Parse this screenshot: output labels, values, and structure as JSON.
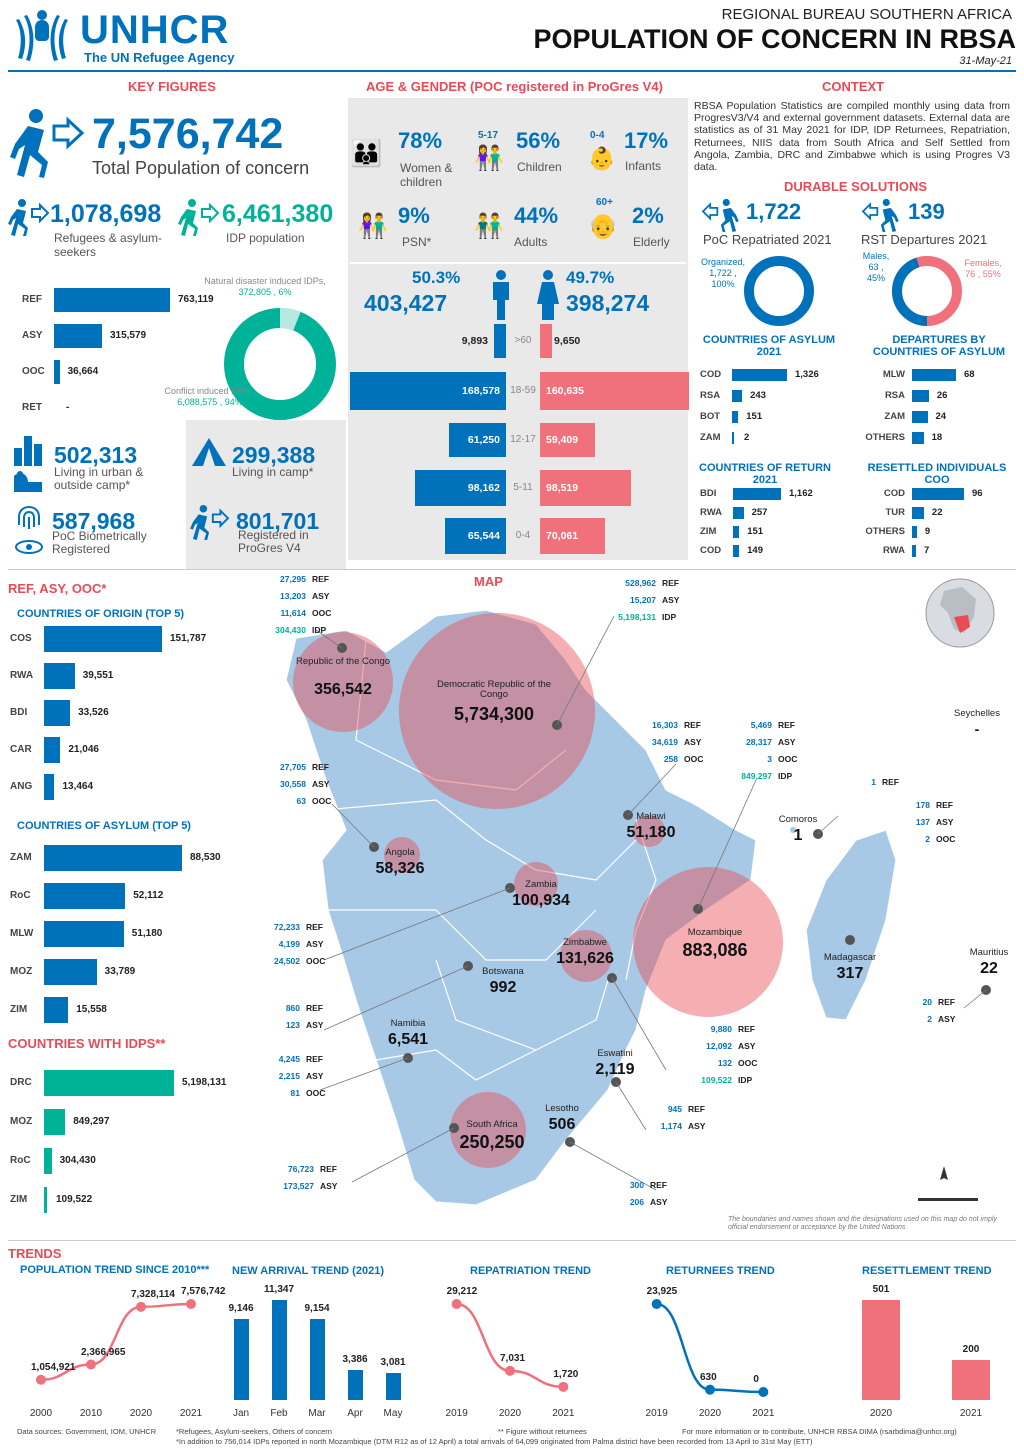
{
  "header": {
    "org": "UNHCR",
    "tagline": "The UN Refugee Agency",
    "bureau": "REGIONAL BUREAU SOUTHERN AFRICA",
    "title": "POPULATION OF CONCERN IN RBSA",
    "date": "31-May-21"
  },
  "key_figures": {
    "heading": "KEY FIGURES",
    "total_value": "7,576,742",
    "total_label": "Total Population of concern",
    "refugees_value": "1,078,698",
    "refugees_label": "Refugees & asylum-seekers",
    "idp_value": "6,461,380",
    "idp_label": "IDP population",
    "bars": [
      {
        "label": "REF",
        "value": "763,119",
        "n": 763119
      },
      {
        "label": "ASY",
        "value": "315,579",
        "n": 315579
      },
      {
        "label": "OOC",
        "value": "36,664",
        "n": 36664
      },
      {
        "label": "RET",
        "value": "-",
        "n": 0
      }
    ],
    "donut_natural_label": "Natural disaster induced IDPs,",
    "donut_natural_value": "372,805 , 6%",
    "donut_conflict_label": "Conflict induced IDPs ,",
    "donut_conflict_value": "6,088,575 , 94%",
    "urban_value": "502,313",
    "urban_label": "Living in urban & outside camp*",
    "camp_value": "299,388",
    "camp_label": "Living in camp*",
    "bio_value": "587,968",
    "bio_label": "PoC Biometrically Registered",
    "progres_value": "801,701",
    "progres_label": "Registered in ProGres V4"
  },
  "age_gender": {
    "heading": "AGE & GENDER (POC registered in ProGres V4)",
    "women_pct": "78%",
    "women_label": "Women & children",
    "children_range": "5-17",
    "children_pct": "56%",
    "children_label": "Children",
    "infants_range": "0-4",
    "infants_pct": "17%",
    "infants_label": "Infants",
    "psn_pct": "9%",
    "psn_label": "PSN*",
    "adults_pct": "44%",
    "adults_label": "Adults",
    "elderly_range": "60+",
    "elderly_pct": "2%",
    "elderly_label": "Elderly",
    "male_pct": "50.3%",
    "male_value": "403,427",
    "female_pct": "49.7%",
    "female_value": "398,274",
    "pyramid": [
      {
        "age": ">60",
        "male": "9,893",
        "female": "9,650",
        "m": 9893,
        "f": 9650
      },
      {
        "age": "18-59",
        "male": "168,578",
        "female": "160,635",
        "m": 168578,
        "f": 160635
      },
      {
        "age": "12-17",
        "male": "61,250",
        "female": "59,409",
        "m": 61250,
        "f": 59409
      },
      {
        "age": "5-11",
        "male": "98,162",
        "female": "98,519",
        "m": 98162,
        "f": 98519
      },
      {
        "age": "0-4",
        "male": "65,544",
        "female": "70,061",
        "m": 65544,
        "f": 70061
      }
    ]
  },
  "context": {
    "heading": "CONTEXT",
    "text": "RBSA Population Statistics are compiled monthly using data from ProgresV3/V4 and external government datasets. External data are statistics as of 31 May 2021 for IDP, IDP Returnees, Repatriation, Returnees, NIIS data from South Africa and Self Settled from Angola, Zambia, DRC and Zimbabwe which is using Progres V3 data.",
    "durable_heading": "DURABLE SOLUTIONS",
    "repat_value": "1,722",
    "repat_label": "PoC Repatriated 2021",
    "rst_value": "139",
    "rst_label": "RST Departures 2021",
    "organized_label": "Organized,",
    "organized_value": "1,722 ,",
    "organized_pct": "100%",
    "males_label": "Males,",
    "males_value": "63 ,",
    "males_pct": "45%",
    "females_label": "Females,",
    "females_value": "76 , 55%",
    "coa_heading": "COUNTRIES OF ASYLUM 2021",
    "coa": [
      {
        "label": "COD",
        "value": "1,326",
        "n": 1326
      },
      {
        "label": "RSA",
        "value": "243",
        "n": 243
      },
      {
        "label": "BOT",
        "value": "151",
        "n": 151
      },
      {
        "label": "ZAM",
        "value": "2",
        "n": 2
      }
    ],
    "dep_heading": "DEPARTURES BY COUNTRIES OF ASYLUM",
    "dep": [
      {
        "label": "MLW",
        "value": "68",
        "n": 68
      },
      {
        "label": "RSA",
        "value": "26",
        "n": 26
      },
      {
        "label": "ZAM",
        "value": "24",
        "n": 24
      },
      {
        "label": "OTHERS",
        "value": "18",
        "n": 18
      }
    ],
    "cor_heading": "COUNTRIES OF RETURN 2021",
    "cor": [
      {
        "label": "BDI",
        "value": "1,162",
        "n": 1162
      },
      {
        "label": "RWA",
        "value": "257",
        "n": 257
      },
      {
        "label": "ZIM",
        "value": "151",
        "n": 151
      },
      {
        "label": "COD",
        "value": "149",
        "n": 149
      }
    ],
    "res_heading": "RESETTLED INDIVIDUALS COO",
    "res": [
      {
        "label": "COD",
        "value": "96",
        "n": 96
      },
      {
        "label": "TUR",
        "value": "22",
        "n": 22
      },
      {
        "label": "OTHERS",
        "value": "9",
        "n": 9
      },
      {
        "label": "RWA",
        "value": "7",
        "n": 7
      }
    ]
  },
  "ref_asy": {
    "heading": "REF, ASY, OOC*",
    "origin_heading": "COUNTRIES OF ORIGIN (TOP 5)",
    "origin": [
      {
        "label": "COS",
        "value": "151,787",
        "n": 151787
      },
      {
        "label": "RWA",
        "value": "39,551",
        "n": 39551
      },
      {
        "label": "BDI",
        "value": "33,526",
        "n": 33526
      },
      {
        "label": "CAR",
        "value": "21,046",
        "n": 21046
      },
      {
        "label": "ANG",
        "value": "13,464",
        "n": 13464
      }
    ],
    "asylum_heading": "COUNTRIES OF ASYLUM (TOP 5)",
    "asylum": [
      {
        "label": "ZAM",
        "value": "88,530",
        "n": 88530
      },
      {
        "label": "RoC",
        "value": "52,112",
        "n": 52112
      },
      {
        "label": "MLW",
        "value": "51,180",
        "n": 51180
      },
      {
        "label": "MOZ",
        "value": "33,789",
        "n": 33789
      },
      {
        "label": "ZIM",
        "value": "15,558",
        "n": 15558
      }
    ],
    "idp_heading": "COUNTRIES WITH IDPs**",
    "idp": [
      {
        "label": "DRC",
        "value": "5,198,131",
        "n": 5198131
      },
      {
        "label": "MOZ",
        "value": "849,297",
        "n": 849297
      },
      {
        "label": "RoC",
        "value": "304,430",
        "n": 304430
      },
      {
        "label": "ZIM",
        "value": "109,522",
        "n": 109522
      }
    ]
  },
  "map": {
    "heading": "MAP",
    "countries": [
      {
        "name": "Republic of the Congo",
        "value": "356,542"
      },
      {
        "name": "Democratic Republic of the Congo",
        "value": "5,734,300"
      },
      {
        "name": "Angola",
        "value": "58,326"
      },
      {
        "name": "Zambia",
        "value": "100,934"
      },
      {
        "name": "Malawi",
        "value": "51,180"
      },
      {
        "name": "Mozambique",
        "value": "883,086"
      },
      {
        "name": "Zimbabwe",
        "value": "131,626"
      },
      {
        "name": "Botswana",
        "value": "992"
      },
      {
        "name": "Namibia",
        "value": "6,541"
      },
      {
        "name": "Eswatini",
        "value": "2,119"
      },
      {
        "name": "Lesotho",
        "value": "506"
      },
      {
        "name": "South Africa",
        "value": "250,250"
      },
      {
        "name": "Madagascar",
        "value": "317"
      },
      {
        "name": "Comoros",
        "value": "1"
      },
      {
        "name": "Mauritius",
        "value": "22"
      },
      {
        "name": "Seychelles",
        "value": "-"
      }
    ],
    "callouts": [
      {
        "rows": [
          [
            "27,295",
            "REF"
          ],
          [
            "13,203",
            "ASY"
          ],
          [
            "11,614",
            "OOC"
          ],
          [
            "304,430",
            "IDP"
          ]
        ]
      },
      {
        "rows": [
          [
            "528,962",
            "REF"
          ],
          [
            "15,207",
            "ASY"
          ],
          [
            "5,198,131",
            "IDP"
          ]
        ]
      },
      {
        "rows": [
          [
            "16,303",
            "REF"
          ],
          [
            "34,619",
            "ASY"
          ],
          [
            "258",
            "OOC"
          ]
        ]
      },
      {
        "rows": [
          [
            "5,469",
            "REF"
          ],
          [
            "28,317",
            "ASY"
          ],
          [
            "3",
            "OOC"
          ],
          [
            "849,297",
            "IDP"
          ]
        ]
      },
      {
        "rows": [
          [
            "1",
            "REF"
          ]
        ]
      },
      {
        "rows": [
          [
            "178",
            "REF"
          ],
          [
            "137",
            "ASY"
          ],
          [
            "2",
            "OOC"
          ]
        ]
      },
      {
        "rows": [
          [
            "27,705",
            "REF"
          ],
          [
            "30,558",
            "ASY"
          ],
          [
            "63",
            "OOC"
          ]
        ]
      },
      {
        "rows": [
          [
            "72,233",
            "REF"
          ],
          [
            "4,199",
            "ASY"
          ],
          [
            "24,502",
            "OOC"
          ]
        ]
      },
      {
        "rows": [
          [
            "860",
            "REF"
          ],
          [
            "123",
            "ASY"
          ]
        ]
      },
      {
        "rows": [
          [
            "4,245",
            "REF"
          ],
          [
            "2,215",
            "ASY"
          ],
          [
            "81",
            "OOC"
          ]
        ]
      },
      {
        "rows": [
          [
            "9,880",
            "REF"
          ],
          [
            "12,092",
            "ASY"
          ],
          [
            "132",
            "OOC"
          ],
          [
            "109,522",
            "IDP"
          ]
        ]
      },
      {
        "rows": [
          [
            "20",
            "REF"
          ],
          [
            "2",
            "ASY"
          ]
        ]
      },
      {
        "rows": [
          [
            "945",
            "REF"
          ],
          [
            "1,174",
            "ASY"
          ]
        ]
      },
      {
        "rows": [
          [
            "76,723",
            "REF"
          ],
          [
            "173,527",
            "ASY"
          ]
        ]
      },
      {
        "rows": [
          [
            "300",
            "REF"
          ],
          [
            "206",
            "ASY"
          ]
        ]
      }
    ],
    "disclaimer": "The boundaries and names shown and the designations used on this map do not imply official endorsement or acceptance by the United Nations"
  },
  "trends": {
    "heading": "TRENDS",
    "charts": [
      {
        "title": "POPULATION TREND SINCE 2010***",
        "type": "line",
        "x": [
          "2000",
          "2010",
          "2020",
          "2021"
        ],
        "labels": [
          "1,054,921",
          "2,366,965",
          "7,328,114",
          "7,576,742"
        ],
        "values": [
          1054921,
          2366965,
          7328114,
          7576742
        ]
      },
      {
        "title": "NEW ARRIVAL TREND (2021)",
        "type": "bar",
        "x": [
          "Jan",
          "Feb",
          "Mar",
          "Apr",
          "May"
        ],
        "labels": [
          "9,146",
          "11,347",
          "9,154",
          "3,386",
          "3,081"
        ],
        "values": [
          9146,
          11347,
          9154,
          3386,
          3081
        ]
      },
      {
        "title": "REPATRIATION TREND",
        "type": "line",
        "x": [
          "2019",
          "2020",
          "2021"
        ],
        "labels": [
          "29,212",
          "7,031",
          "1,720"
        ],
        "values": [
          29212,
          7031,
          1720
        ]
      },
      {
        "title": "RETURNEES TREND",
        "type": "line",
        "x": [
          "2019",
          "2020",
          "2021"
        ],
        "labels": [
          "23,925",
          "630",
          "0"
        ],
        "values": [
          23925,
          630,
          0
        ]
      },
      {
        "title": "RESETTLEMENT TREND",
        "type": "bar",
        "x": [
          "2020",
          "2021"
        ],
        "labels": [
          "501",
          "200"
        ],
        "values": [
          501,
          200
        ]
      }
    ]
  },
  "footer": {
    "sources": "Data sources: Government, IOM, UNHCR",
    "note1": "*Refugees, Asylum-seekers, Others of concern",
    "note2": "** Figure without returnees",
    "note3": "*In addition to 756,014 IDPs reported in north Mozambique (DTM R12 as of 12 April) a total arrivals of 64,099 originated from Palma district have been recorded from 13 April to 31st May (ETT)",
    "contact": "For more information or to contribute, UNHCR RBSA DIMA (rsarbdima@unhcr.org)"
  },
  "colors": {
    "blue": "#0072bc",
    "red": "#e84b55",
    "teal": "#00b398",
    "pink": "#f0707c",
    "map": "#a7c9e6"
  }
}
